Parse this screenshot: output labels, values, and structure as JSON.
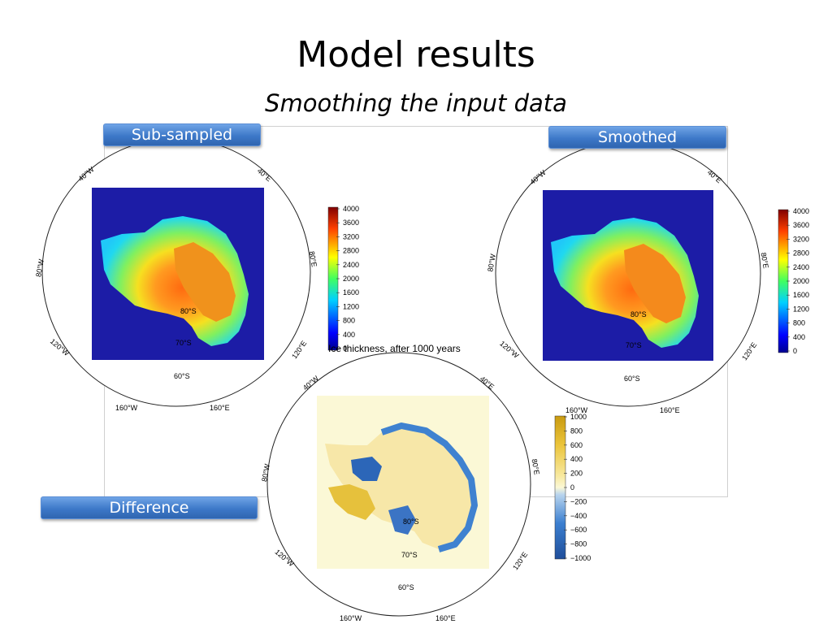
{
  "slide": {
    "title": "Model results",
    "subtitle": "Smoothing the input data"
  },
  "labels": {
    "subsampled": "Sub-sampled",
    "smoothed": "Smoothed",
    "difference": "Difference"
  },
  "maps": {
    "lon_labels": {
      "l40w": "40°W",
      "l40e": "40°E",
      "l80w": "80°W",
      "l80e": "80°E",
      "l120w": "120°W",
      "l120e": "120°E",
      "l160w": "160°W",
      "l160e": "160°E"
    },
    "lat_labels": {
      "s60": "60°S",
      "s70": "70°S",
      "s80": "80°S"
    },
    "difference_title": "Ice thickness, after 1000 years"
  },
  "colorbars": {
    "thickness": [
      "4000",
      "3600",
      "3200",
      "2800",
      "2400",
      "2000",
      "1600",
      "1200",
      "800",
      "400",
      "0"
    ],
    "difference": [
      "1000",
      "800",
      "600",
      "400",
      "200",
      "0",
      "−200",
      "−400",
      "−600",
      "−800",
      "−1000"
    ]
  },
  "colors": {
    "ocean_blue": "#1c1ca6",
    "pill_blue": "#3d78c8",
    "diff_background": "#fbf8d6"
  }
}
